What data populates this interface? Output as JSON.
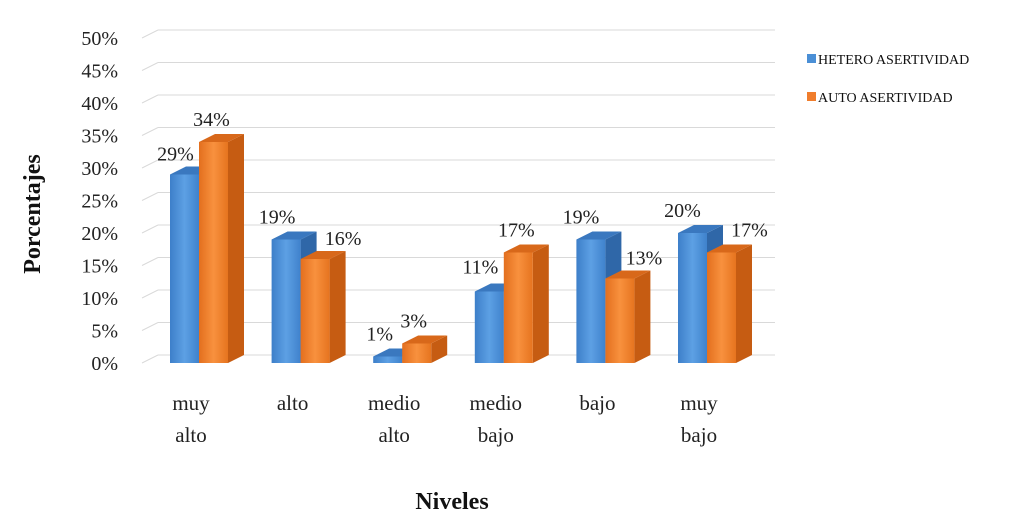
{
  "chart_data": {
    "type": "bar",
    "title": "",
    "xlabel": "Niveles",
    "ylabel": "Porcentajes",
    "ylim": [
      0,
      50
    ],
    "yticks": [
      0,
      5,
      10,
      15,
      20,
      25,
      30,
      35,
      40,
      45,
      50
    ],
    "ytick_suffix": "%",
    "categories": [
      [
        "muy",
        "alto"
      ],
      [
        "alto"
      ],
      [
        "medio",
        "alto"
      ],
      [
        "medio",
        "bajo"
      ],
      [
        "bajo"
      ],
      [
        "muy",
        "bajo"
      ]
    ],
    "series": [
      {
        "name": "HETERO ASERTIVIDAD",
        "color": "#4a8fd6",
        "values": [
          29,
          19,
          1,
          11,
          19,
          20
        ],
        "labels": [
          "29%",
          "19%",
          "1%",
          "11%",
          "19%",
          "20%"
        ]
      },
      {
        "name": "AUTO ASERTIVIDAD",
        "color": "#f07d2c",
        "values": [
          34,
          16,
          3,
          17,
          13,
          17
        ],
        "labels": [
          "34%",
          "16%",
          "3%",
          "17%",
          "13%",
          "17%"
        ]
      }
    ],
    "grid": true,
    "style": "3d-column",
    "legend_position": "right"
  }
}
